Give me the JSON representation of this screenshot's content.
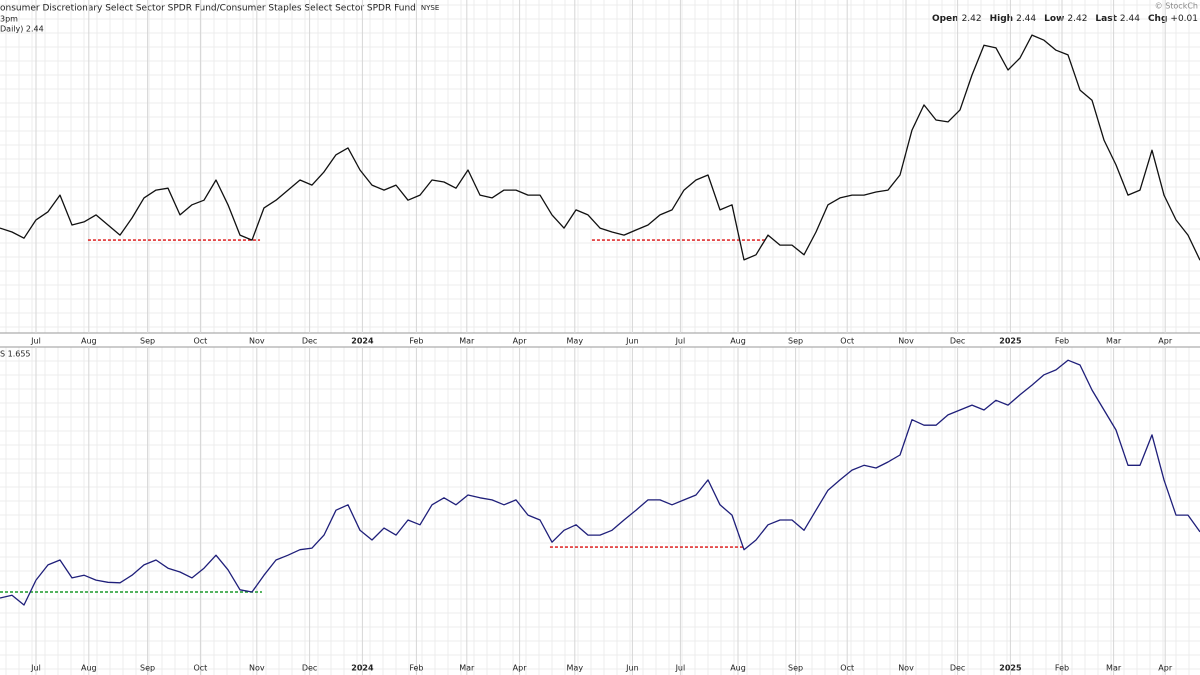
{
  "header": {
    "title": "onsumer Discretionary Select Sector SPDR Fund/Consumer Staples Select Sector SPDR Fund",
    "exchange": "NYSE",
    "brand": "© StockCh",
    "quote": [
      {
        "label": "Open",
        "value": "2.42"
      },
      {
        "label": "High",
        "value": "2.44"
      },
      {
        "label": "Low",
        "value": "2.42"
      },
      {
        "label": "Last",
        "value": "2.44"
      },
      {
        "label": "Chg",
        "value": "+0.01"
      }
    ],
    "time": "3pm"
  },
  "chart_data": [
    {
      "type": "line",
      "legend": "Daily) 2.44",
      "color": "#111111",
      "grid": true,
      "xlim": [
        0,
        100
      ],
      "ylim": [
        2.26,
        3.06
      ],
      "xticks": [
        {
          "value": 3.0,
          "label": "Jul"
        },
        {
          "value": 7.4,
          "label": "Aug"
        },
        {
          "value": 12.3,
          "label": "Sep"
        },
        {
          "value": 16.7,
          "label": "Oct"
        },
        {
          "value": 21.4,
          "label": "Nov"
        },
        {
          "value": 25.8,
          "label": "Dec"
        },
        {
          "value": 30.2,
          "label": "2024"
        },
        {
          "value": 34.7,
          "label": "Feb"
        },
        {
          "value": 38.9,
          "label": "Mar"
        },
        {
          "value": 43.3,
          "label": "Apr"
        },
        {
          "value": 47.9,
          "label": "May"
        },
        {
          "value": 52.7,
          "label": "Jun"
        },
        {
          "value": 56.7,
          "label": "Jul"
        },
        {
          "value": 61.5,
          "label": "Aug"
        },
        {
          "value": 66.3,
          "label": "Sep"
        },
        {
          "value": 70.6,
          "label": "Oct"
        },
        {
          "value": 75.5,
          "label": "Nov"
        },
        {
          "value": 79.8,
          "label": "Dec"
        },
        {
          "value": 84.2,
          "label": "2025"
        },
        {
          "value": 88.5,
          "label": "Feb"
        },
        {
          "value": 92.8,
          "label": "Mar"
        },
        {
          "value": 97.1,
          "label": "Apr"
        }
      ],
      "values": [
        2.523,
        2.513,
        2.497,
        2.544,
        2.565,
        2.608,
        2.531,
        2.539,
        2.557,
        2.531,
        2.505,
        2.549,
        2.601,
        2.621,
        2.626,
        2.557,
        2.583,
        2.595,
        2.647,
        2.583,
        2.505,
        2.492,
        2.575,
        2.595,
        2.621,
        2.647,
        2.634,
        2.668,
        2.712,
        2.73,
        2.673,
        2.634,
        2.621,
        2.634,
        2.595,
        2.608,
        2.647,
        2.642,
        2.626,
        2.673,
        2.608,
        2.601,
        2.621,
        2.621,
        2.608,
        2.608,
        2.557,
        2.523,
        2.57,
        2.557,
        2.523,
        2.513,
        2.505,
        2.518,
        2.531,
        2.557,
        2.57,
        2.621,
        2.647,
        2.66,
        2.57,
        2.583,
        2.441,
        2.454,
        2.505,
        2.479,
        2.479,
        2.454,
        2.513,
        2.583,
        2.601,
        2.608,
        2.608,
        2.616,
        2.621,
        2.66,
        2.776,
        2.841,
        2.802,
        2.797,
        2.828,
        2.918,
        2.995,
        2.988,
        2.931,
        2.962,
        3.021,
        3.008,
        2.982,
        2.97,
        2.879,
        2.853,
        2.75,
        2.686,
        2.608,
        2.621,
        2.724,
        2.608,
        2.544,
        2.505,
        2.44
      ],
      "reference_lines": [
        {
          "value": 2.492,
          "x": [
            7.33,
            21.67
          ],
          "color": "#e03030"
        },
        {
          "value": 2.492,
          "x": [
            49.33,
            63.75
          ],
          "color": "#e03030"
        }
      ]
    },
    {
      "type": "line",
      "legend": "S 1.655",
      "color": "#1f1f7a",
      "grid": true,
      "xlim": [
        0,
        100
      ],
      "ylim": [
        1.4,
        2.0
      ],
      "xticks": [
        {
          "value": 3.0,
          "label": "Jul"
        },
        {
          "value": 7.4,
          "label": "Aug"
        },
        {
          "value": 12.3,
          "label": "Sep"
        },
        {
          "value": 16.7,
          "label": "Oct"
        },
        {
          "value": 21.4,
          "label": "Nov"
        },
        {
          "value": 25.8,
          "label": "Dec"
        },
        {
          "value": 30.2,
          "label": "2024"
        },
        {
          "value": 34.7,
          "label": "Feb"
        },
        {
          "value": 38.9,
          "label": "Mar"
        },
        {
          "value": 43.3,
          "label": "Apr"
        },
        {
          "value": 47.9,
          "label": "May"
        },
        {
          "value": 52.7,
          "label": "Jun"
        },
        {
          "value": 56.7,
          "label": "Jul"
        },
        {
          "value": 61.5,
          "label": "Aug"
        },
        {
          "value": 66.3,
          "label": "Sep"
        },
        {
          "value": 70.6,
          "label": "Oct"
        },
        {
          "value": 75.5,
          "label": "Nov"
        },
        {
          "value": 79.8,
          "label": "Dec"
        },
        {
          "value": 84.2,
          "label": "2025"
        },
        {
          "value": 88.5,
          "label": "Feb"
        },
        {
          "value": 92.8,
          "label": "Mar"
        },
        {
          "value": 97.1,
          "label": "Apr"
        }
      ],
      "values": [
        1.533,
        1.538,
        1.52,
        1.566,
        1.594,
        1.603,
        1.57,
        1.575,
        1.566,
        1.562,
        1.561,
        1.575,
        1.594,
        1.603,
        1.588,
        1.581,
        1.57,
        1.588,
        1.612,
        1.585,
        1.548,
        1.544,
        1.575,
        1.603,
        1.612,
        1.622,
        1.625,
        1.649,
        1.695,
        1.705,
        1.658,
        1.64,
        1.662,
        1.649,
        1.677,
        1.668,
        1.705,
        1.718,
        1.705,
        1.723,
        1.718,
        1.714,
        1.705,
        1.714,
        1.686,
        1.677,
        1.636,
        1.658,
        1.668,
        1.649,
        1.649,
        1.658,
        1.677,
        1.695,
        1.714,
        1.714,
        1.705,
        1.714,
        1.723,
        1.751,
        1.705,
        1.686,
        1.622,
        1.64,
        1.668,
        1.677,
        1.677,
        1.658,
        1.695,
        1.732,
        1.751,
        1.769,
        1.778,
        1.773,
        1.784,
        1.797,
        1.862,
        1.852,
        1.852,
        1.871,
        1.88,
        1.889,
        1.88,
        1.898,
        1.889,
        1.908,
        1.926,
        1.945,
        1.954,
        1.972,
        1.963,
        1.917,
        1.88,
        1.843,
        1.778,
        1.778,
        1.834,
        1.751,
        1.686,
        1.686,
        1.655
      ],
      "reference_lines": [
        {
          "value": 1.627,
          "x": [
            45.83,
            62.08
          ],
          "color": "#e03030"
        },
        {
          "value": 1.544,
          "x": [
            0,
            21.83
          ],
          "color": "#1a9a2a"
        }
      ]
    }
  ]
}
